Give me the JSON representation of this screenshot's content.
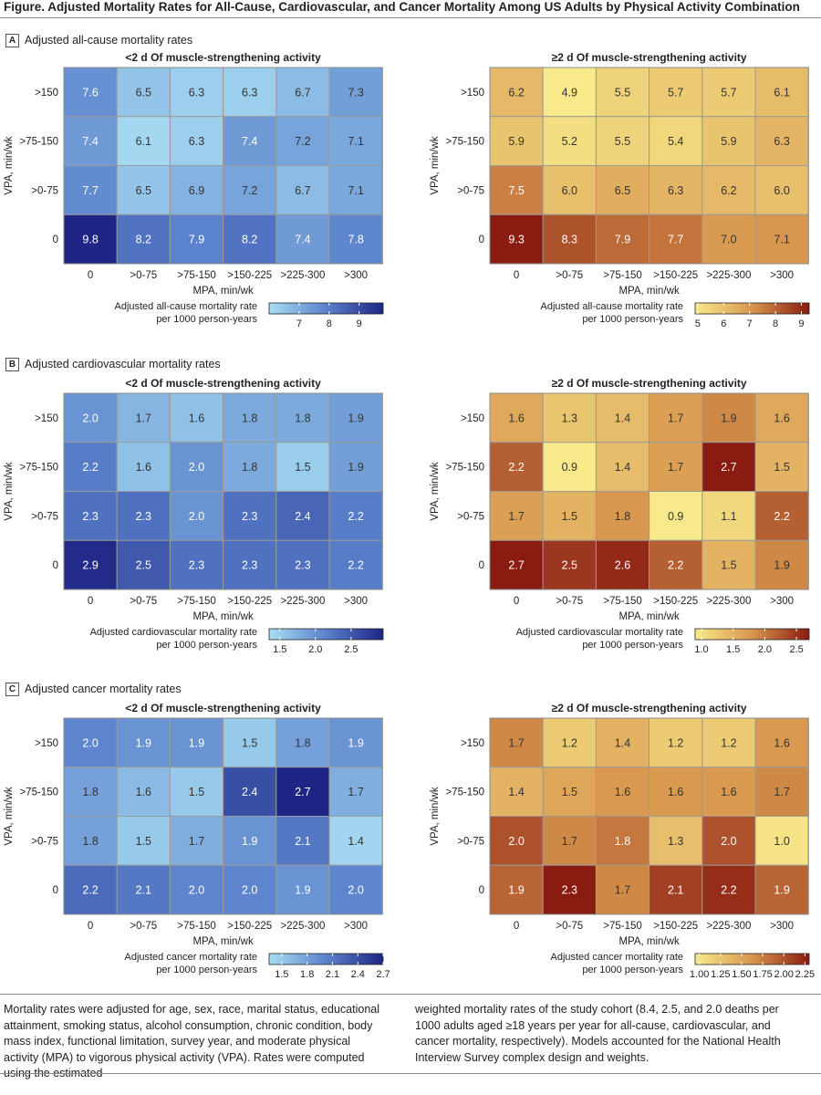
{
  "figure_title": "Figure. Adjusted Mortality Rates for All-Cause, Cardiovascular, and Cancer Mortality Among US Adults by Physical Activity Combination",
  "sections": [
    {
      "letter": "A",
      "title": "Adjusted all-cause mortality rates"
    },
    {
      "letter": "B",
      "title": "Adjusted cardiovascular mortality rates"
    },
    {
      "letter": "C",
      "title": "Adjusted cancer mortality rates"
    }
  ],
  "footnote_left": "Mortality rates were adjusted for age, sex, race, marital status, educational attainment, smoking status, alcohol consumption, chronic condition, body mass index, functional limitation, survey year, and moderate physical activity (MPA) to vigorous physical activity (VPA). Rates were computed using the estimated",
  "footnote_right": "weighted mortality rates of the study cohort (8.4, 2.5, and 2.0 deaths per 1000 adults aged ≥18 years per year for all-cause, cardiovascular, and cancer mortality, respectively). Models accounted for the National Health Interview Survey complex design and weights.",
  "colors": {
    "blue_low": "#a8ddf3",
    "blue_mid": "#5b82cc",
    "blue_high": "#1e2585",
    "yellow_low": "#f8e98a",
    "orange_mid": "#d8974e",
    "red_high": "#8a1b10",
    "cell_text_light": "#ffffff",
    "cell_text_dark": "#333333"
  },
  "chart_data": [
    {
      "type": "heatmap",
      "section": "A",
      "title": "<2 d Of muscle-strengthening activity",
      "xlabel": "MPA, min/wk",
      "ylabel": "VPA, min/wk",
      "x_categories": [
        "0",
        ">0-75",
        ">75-150",
        ">150-225",
        ">225-300",
        ">300"
      ],
      "y_categories": [
        ">150",
        ">75-150",
        ">0-75",
        "0"
      ],
      "values": [
        [
          7.6,
          6.5,
          6.3,
          6.3,
          6.7,
          7.3
        ],
        [
          7.4,
          6.1,
          6.3,
          7.4,
          7.2,
          7.1
        ],
        [
          7.7,
          6.5,
          6.9,
          7.2,
          6.7,
          7.1
        ],
        [
          9.8,
          8.2,
          7.9,
          8.2,
          7.4,
          7.8
        ]
      ],
      "colorbar": {
        "label": [
          "Adjusted all-cause mortality rate",
          "per 1000 person-years"
        ],
        "range": [
          6.0,
          9.8
        ],
        "ticks": [
          "7",
          "8",
          "9"
        ],
        "tick_values": [
          7,
          8,
          9
        ],
        "palette": "blue"
      }
    },
    {
      "type": "heatmap",
      "section": "A",
      "title": "≥2 d Of muscle-strengthening activity",
      "xlabel": "MPA, min/wk",
      "ylabel": "VPA, min/wk",
      "x_categories": [
        "0",
        ">0-75",
        ">75-150",
        ">150-225",
        ">225-300",
        ">300"
      ],
      "y_categories": [
        ">150",
        ">75-150",
        ">0-75",
        "0"
      ],
      "values": [
        [
          6.2,
          4.9,
          5.5,
          5.7,
          5.7,
          6.1
        ],
        [
          5.9,
          5.2,
          5.5,
          5.4,
          5.9,
          6.3
        ],
        [
          7.5,
          6.0,
          6.5,
          6.3,
          6.2,
          6.0
        ],
        [
          9.3,
          8.3,
          7.9,
          7.7,
          7.0,
          7.1
        ]
      ],
      "colorbar": {
        "label": [
          "Adjusted all-cause mortality rate",
          "per 1000 person-years"
        ],
        "range": [
          4.9,
          9.3
        ],
        "ticks": [
          "5",
          "6",
          "7",
          "8",
          "9"
        ],
        "tick_values": [
          5,
          6,
          7,
          8,
          9
        ],
        "palette": "orange"
      }
    },
    {
      "type": "heatmap",
      "section": "B",
      "title": "<2 d Of muscle-strengthening activity",
      "xlabel": "MPA, min/wk",
      "ylabel": "VPA, min/wk",
      "x_categories": [
        "0",
        ">0-75",
        ">75-150",
        ">150-225",
        ">225-300",
        ">300"
      ],
      "y_categories": [
        ">150",
        ">75-150",
        ">0-75",
        "0"
      ],
      "values": [
        [
          2.0,
          1.7,
          1.6,
          1.8,
          1.8,
          1.9
        ],
        [
          2.2,
          1.6,
          2.0,
          1.8,
          1.5,
          1.9
        ],
        [
          2.3,
          2.3,
          2.0,
          2.3,
          2.4,
          2.2
        ],
        [
          2.9,
          2.5,
          2.3,
          2.3,
          2.3,
          2.2
        ]
      ],
      "colorbar": {
        "label": [
          "Adjusted cardiovascular mortality rate",
          "per 1000 person-years"
        ],
        "range": [
          1.35,
          2.95
        ],
        "ticks": [
          "1.5",
          "2.0",
          "2.5"
        ],
        "tick_values": [
          1.5,
          2.0,
          2.5
        ],
        "palette": "blue"
      }
    },
    {
      "type": "heatmap",
      "section": "B",
      "title": "≥2 d Of muscle-strengthening activity",
      "xlabel": "MPA, min/wk",
      "ylabel": "VPA, min/wk",
      "x_categories": [
        "0",
        ">0-75",
        ">75-150",
        ">150-225",
        ">225-300",
        ">300"
      ],
      "y_categories": [
        ">150",
        ">75-150",
        ">0-75",
        "0"
      ],
      "values": [
        [
          1.6,
          1.3,
          1.4,
          1.7,
          1.9,
          1.6
        ],
        [
          2.2,
          0.9,
          1.4,
          1.7,
          2.7,
          1.5
        ],
        [
          1.7,
          1.5,
          1.8,
          0.9,
          1.1,
          2.2
        ],
        [
          2.7,
          2.5,
          2.6,
          2.2,
          1.5,
          1.9
        ]
      ],
      "colorbar": {
        "label": [
          "Adjusted cardiovascular mortality rate",
          "per 1000 person-years"
        ],
        "range": [
          0.9,
          2.7
        ],
        "ticks": [
          "1.0",
          "1.5",
          "2.0",
          "2.5"
        ],
        "tick_values": [
          1.0,
          1.5,
          2.0,
          2.5
        ],
        "palette": "orange"
      }
    },
    {
      "type": "heatmap",
      "section": "C",
      "title": "<2 d Of muscle-strengthening activity",
      "xlabel": "MPA, min/wk",
      "ylabel": "VPA, min/wk",
      "x_categories": [
        "0",
        ">0-75",
        ">75-150",
        ">150-225",
        ">225-300",
        ">300"
      ],
      "y_categories": [
        ">150",
        ">75-150",
        ">0-75",
        "0"
      ],
      "values": [
        [
          2.0,
          1.9,
          1.9,
          1.5,
          1.8,
          1.9
        ],
        [
          1.8,
          1.6,
          1.5,
          2.4,
          2.7,
          1.7
        ],
        [
          1.8,
          1.5,
          1.7,
          1.9,
          2.1,
          1.4
        ],
        [
          2.2,
          2.1,
          2.0,
          2.0,
          1.9,
          2.0
        ]
      ],
      "colorbar": {
        "label": [
          "Adjusted cancer mortality rate",
          "per 1000 person-years"
        ],
        "range": [
          1.35,
          2.7
        ],
        "ticks": [
          "1.5",
          "1.8",
          "2.1",
          "2.4",
          "2.7"
        ],
        "tick_values": [
          1.5,
          1.8,
          2.1,
          2.4,
          2.7
        ],
        "palette": "blue"
      }
    },
    {
      "type": "heatmap",
      "section": "C",
      "title": "≥2 d Of muscle-strengthening activity",
      "xlabel": "MPA, min/wk",
      "ylabel": "VPA, min/wk",
      "x_categories": [
        "0",
        ">0-75",
        ">75-150",
        ">150-225",
        ">225-300",
        ">300"
      ],
      "y_categories": [
        ">150",
        ">75-150",
        ">0-75",
        "0"
      ],
      "values": [
        [
          1.7,
          1.2,
          1.4,
          1.2,
          1.2,
          1.6
        ],
        [
          1.4,
          1.5,
          1.6,
          1.6,
          1.6,
          1.7
        ],
        [
          2.0,
          1.7,
          1.8,
          1.3,
          2.0,
          1.0
        ],
        [
          1.9,
          2.3,
          1.7,
          2.1,
          2.2,
          1.9
        ]
      ],
      "colorbar": {
        "label": [
          "Adjusted cancer mortality rate",
          "per 1000 person-years"
        ],
        "range": [
          0.95,
          2.3
        ],
        "ticks": [
          "1.00",
          "1.25",
          "1.50",
          "1.75",
          "2.00",
          "2.25"
        ],
        "tick_values": [
          1.0,
          1.25,
          1.5,
          1.75,
          2.0,
          2.25
        ],
        "palette": "orange"
      }
    }
  ]
}
